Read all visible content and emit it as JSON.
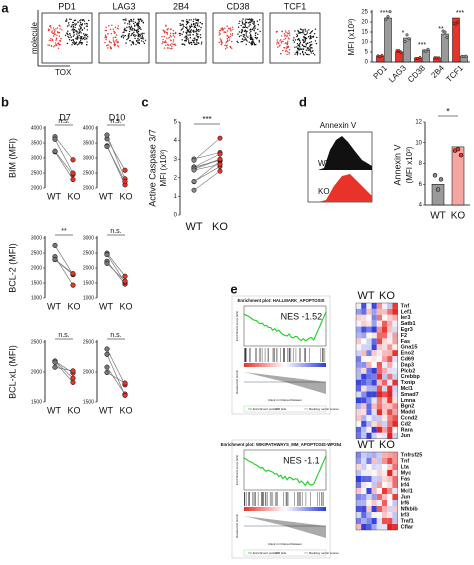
{
  "panel_a": {
    "label": "a",
    "plots": [
      "PD1",
      "LAG3",
      "2B4",
      "CD38",
      "TCF1"
    ],
    "y_label": "molecule",
    "x_label": "TOX",
    "bar": {
      "y_label": "MFI (x10³)",
      "yticks": [
        0,
        5,
        10,
        15,
        20,
        25
      ],
      "categories": [
        "PD1",
        "LAG3",
        "CD38",
        "2B4",
        "TCF1"
      ],
      "significance": [
        "***",
        "*",
        "***",
        "**",
        "***"
      ]
    }
  },
  "panel_b": {
    "label": "b",
    "columns": [
      "D7",
      "D10"
    ],
    "groups": [
      "WT",
      "KO"
    ],
    "rows": [
      {
        "y_label": "BIM (MFI)",
        "yticks": [
          2000,
          2500,
          3000,
          3500,
          4000
        ],
        "significance": [
          "n.s.",
          "n.s."
        ]
      },
      {
        "y_label": "BCL-2 (MFI)",
        "yticks": [
          1000,
          1500,
          2000,
          2500,
          3000
        ],
        "significance": [
          "**",
          "n.s."
        ]
      },
      {
        "y_label": "BCL-xL (MFI)",
        "yticks": [
          1500,
          2000,
          2500
        ],
        "significance": [
          "n.s.",
          "n.s."
        ]
      }
    ]
  },
  "panel_c": {
    "label": "c",
    "y_label": "Active Caspase 3/7",
    "y_label_unit": "MFI (x10³)",
    "yticks": [
      0,
      1,
      2,
      3,
      4,
      5
    ],
    "significance": "***",
    "groups": [
      "WT",
      "KO"
    ]
  },
  "panel_d": {
    "label": "d",
    "histogram_title": "Annexin V",
    "histogram_legend": [
      "WT",
      "KO"
    ],
    "y_label": "Annexin V",
    "y_label_unit": "(MFI x10³)",
    "yticks": [
      4,
      6,
      8,
      10,
      12
    ],
    "significance": "*",
    "groups": [
      "WT",
      "KO"
    ]
  },
  "panel_e": {
    "label": "e",
    "gsea": [
      {
        "title": "Enrichment plot: HALLMARK_APOPTOSIS",
        "nes": "NES -1.52"
      },
      {
        "title": "Enrichment plot: WIKIPATHWAYS_MM_APOPTOSIS-WP254",
        "nes": "NES -1.1"
      }
    ],
    "gsea_axes": {
      "es": "Enrichment score (ES)",
      "rank": "Rank in Ordered Dataset",
      "metric": "Ranked list metric"
    },
    "gsea_legend": [
      "Enrichment profile",
      "Hits",
      "Ranking metric scores"
    ],
    "heatmaps": [
      {
        "columns": [
          "WT",
          "KO"
        ],
        "genes": [
          "Tnf",
          "Lef1",
          "Ier3",
          "Satb1",
          "Egr3",
          "F2",
          "Fas",
          "Gna15",
          "Eno2",
          "Cd69",
          "Dap3",
          "Plcb2",
          "Crebbp",
          "Txnip",
          "Mcl1",
          "Smad7",
          "Lmna",
          "Bgn2",
          "Madd",
          "Ccnd2",
          "Cd2",
          "Rara",
          "Jun"
        ]
      },
      {
        "columns": [
          "WT",
          "KO"
        ],
        "genes": [
          "Tnfrsf25",
          "Tnf",
          "Lta",
          "Myc",
          "Fas",
          "Irf4",
          "Mcl1",
          "Jun",
          "Irf6",
          "Nfkbib",
          "Irf3",
          "Traf1",
          "Cflar"
        ]
      }
    ]
  }
}
